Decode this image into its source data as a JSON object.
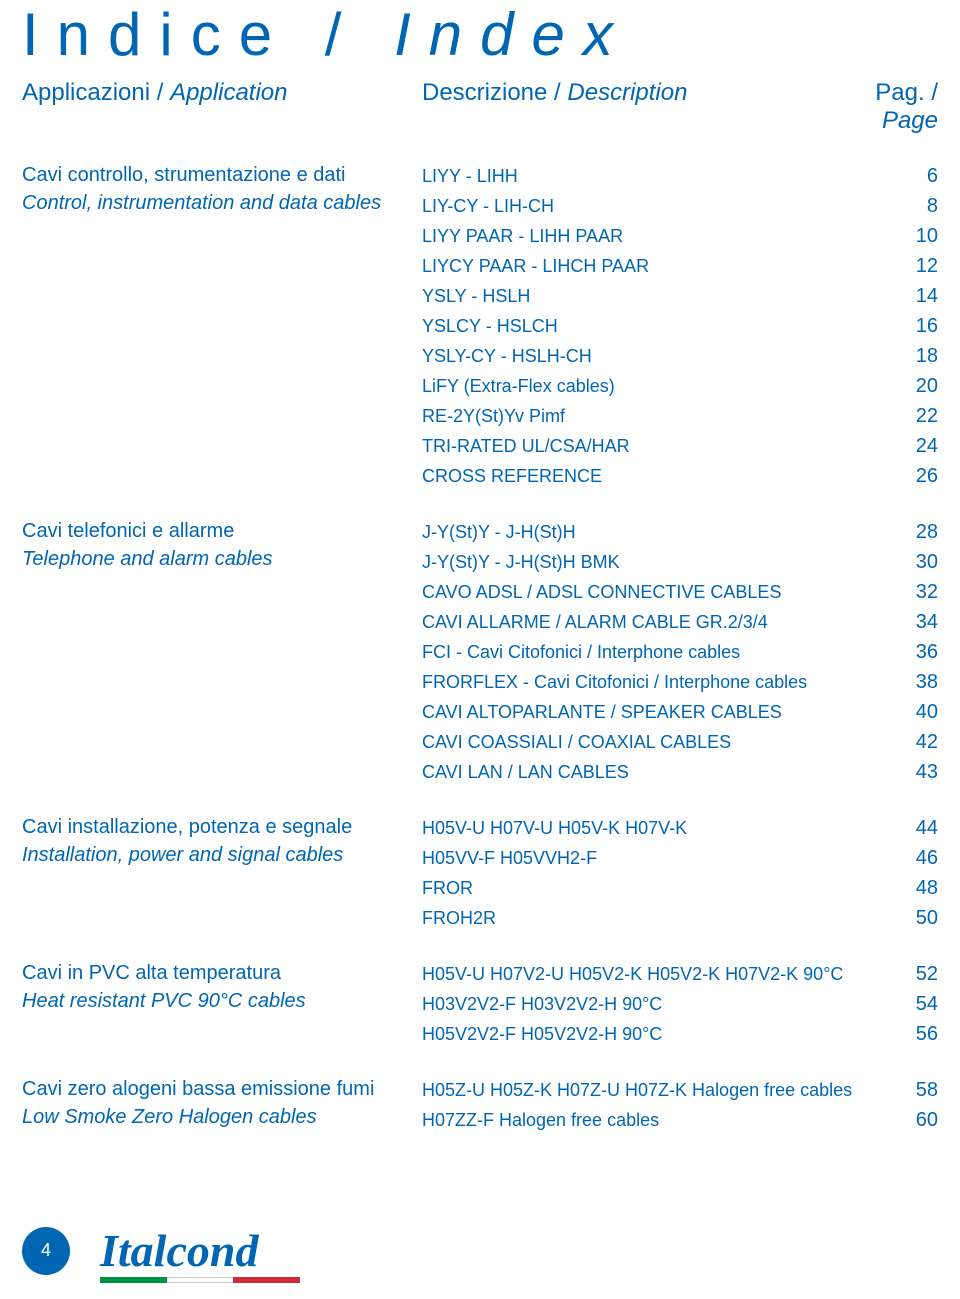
{
  "colors": {
    "brand": "#0066b3",
    "bg": "#ffffff"
  },
  "title_plain": "Indice / ",
  "title_italic": "Index",
  "header": {
    "left_plain": "Applicazioni / ",
    "left_italic": "Application",
    "mid_plain": "Descrizione / ",
    "mid_italic": "Description",
    "right_plain": "Pag. / ",
    "right_italic": "Page"
  },
  "sections": [
    {
      "label_plain": "Cavi controllo, strumentazione e dati",
      "label_italic": "Control, instrumentation and data cables",
      "rows": [
        {
          "desc": "LIYY - LIHH",
          "page": "6"
        },
        {
          "desc": "LIY-CY - LIH-CH",
          "page": "8"
        },
        {
          "desc": "LIYY PAAR - LIHH PAAR",
          "page": "10"
        },
        {
          "desc": "LIYCY PAAR - LIHCH PAAR",
          "page": "12"
        },
        {
          "desc": "YSLY - HSLH",
          "page": "14"
        },
        {
          "desc": "YSLCY - HSLCH",
          "page": "16"
        },
        {
          "desc": "YSLY-CY - HSLH-CH",
          "page": "18"
        },
        {
          "desc": "LiFY (Extra-Flex cables)",
          "page": "20"
        },
        {
          "desc": "RE-2Y(St)Yv Pimf",
          "page": "22"
        },
        {
          "desc": "TRI-RATED UL/CSA/HAR",
          "page": "24"
        },
        {
          "desc": "CROSS REFERENCE",
          "page": "26"
        }
      ]
    },
    {
      "label_plain": "Cavi telefonici e allarme",
      "label_italic": "Telephone and alarm cables",
      "rows": [
        {
          "desc": "J-Y(St)Y - J-H(St)H",
          "page": "28"
        },
        {
          "desc": "J-Y(St)Y - J-H(St)H BMK",
          "page": "30"
        },
        {
          "desc": "CAVO ADSL / ADSL CONNECTIVE CABLES",
          "page": "32"
        },
        {
          "desc": "CAVI ALLARME / ALARM CABLE GR.2/3/4",
          "page": "34"
        },
        {
          "desc": "FCI - Cavi Citofonici / Interphone cables",
          "page": "36"
        },
        {
          "desc": "FRORFLEX - Cavi Citofonici / Interphone cables",
          "page": "38"
        },
        {
          "desc": "CAVI ALTOPARLANTE / SPEAKER CABLES",
          "page": "40"
        },
        {
          "desc": "CAVI COASSIALI / COAXIAL CABLES",
          "page": "42"
        },
        {
          "desc": "CAVI LAN / LAN CABLES",
          "page": "43"
        }
      ]
    },
    {
      "label_plain": "Cavi installazione, potenza e segnale",
      "label_italic": "Installation, power and signal cables",
      "rows": [
        {
          "desc": "H05V-U H07V-U H05V-K H07V-K",
          "page": "44"
        },
        {
          "desc": "H05VV-F H05VVH2-F",
          "page": "46"
        },
        {
          "desc": "FROR",
          "page": "48"
        },
        {
          "desc": "FROH2R",
          "page": "50"
        }
      ]
    },
    {
      "label_plain": "Cavi in PVC alta temperatura",
      "label_italic": "Heat resistant PVC 90°C cables",
      "rows": [
        {
          "desc": "H05V-U H07V2-U H05V2-K H05V2-K H07V2-K 90°C",
          "page": "52"
        },
        {
          "desc": "H03V2V2-F H03V2V2-H 90°C",
          "page": "54"
        },
        {
          "desc": "H05V2V2-F H05V2V2-H 90°C",
          "page": "56"
        }
      ]
    },
    {
      "label_plain": "Cavi zero alogeni bassa emissione fumi",
      "label_italic": "Low Smoke Zero Halogen cables",
      "rows": [
        {
          "desc": "H05Z-U H05Z-K H07Z-U H07Z-K Halogen free cables",
          "page": "58"
        },
        {
          "desc": "H07ZZ-F Halogen free cables",
          "page": "60"
        }
      ]
    }
  ],
  "footer": {
    "page": "4",
    "logo": "Italcond"
  }
}
